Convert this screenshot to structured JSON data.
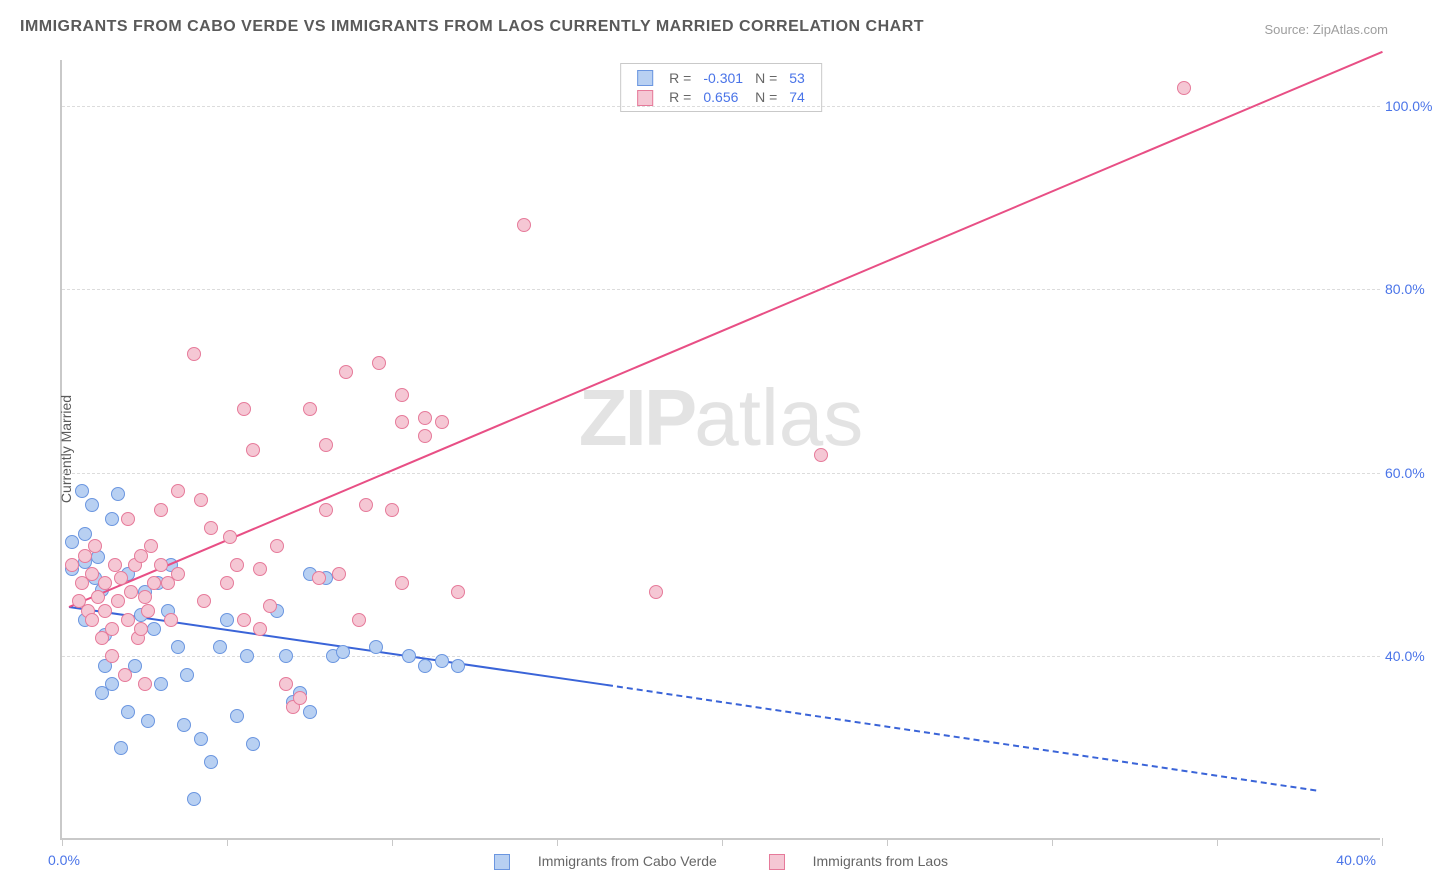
{
  "title": "IMMIGRANTS FROM CABO VERDE VS IMMIGRANTS FROM LAOS CURRENTLY MARRIED CORRELATION CHART",
  "source": "Source: ZipAtlas.com",
  "watermark_a": "ZIP",
  "watermark_b": "atlas",
  "chart": {
    "type": "scatter",
    "yaxis_title": "Currently Married",
    "xlim": [
      0,
      40
    ],
    "ylim": [
      20,
      105
    ],
    "xticks": [
      0,
      5,
      10,
      15,
      20,
      25,
      30,
      35,
      40
    ],
    "yticks": [
      40,
      60,
      80,
      100
    ],
    "ytick_labels": [
      "40.0%",
      "60.0%",
      "80.0%",
      "100.0%"
    ],
    "xlabel_min": "0.0%",
    "xlabel_max": "40.0%",
    "background_color": "#ffffff",
    "grid_color": "#dcdcdc",
    "axis_color": "#c9c9c9",
    "label_color": "#4a74e8",
    "title_color": "#5a5a5a",
    "title_fontsize": 16,
    "label_fontsize": 14,
    "marker_radius": 7,
    "marker_border_width": 1.2
  },
  "series": [
    {
      "key": "cabo_verde",
      "name": "Immigrants from Cabo Verde",
      "fill": "#b8d0f2",
      "stroke": "#6b96e0",
      "line_color": "#3a64d8",
      "R": "-0.301",
      "N": "53",
      "trend": {
        "x1": 0.2,
        "y1": 45.5,
        "x2": 16.5,
        "y2": 37.0,
        "dash_from_x": 16.5,
        "x3": 38.0,
        "y3": 25.5
      },
      "points": [
        [
          0.3,
          49.5
        ],
        [
          0.3,
          52.5
        ],
        [
          0.6,
          58.0
        ],
        [
          0.7,
          50.3
        ],
        [
          0.7,
          53.3
        ],
        [
          0.7,
          44.0
        ],
        [
          0.9,
          56.5
        ],
        [
          1.0,
          48.6
        ],
        [
          1.1,
          50.8
        ],
        [
          1.2,
          47.2
        ],
        [
          1.2,
          36.0
        ],
        [
          1.3,
          39.0
        ],
        [
          1.3,
          42.3
        ],
        [
          1.5,
          37.0
        ],
        [
          1.5,
          55.0
        ],
        [
          1.7,
          57.7
        ],
        [
          1.8,
          30.0
        ],
        [
          2.0,
          49.0
        ],
        [
          2.0,
          34.0
        ],
        [
          2.2,
          39.0
        ],
        [
          2.4,
          44.5
        ],
        [
          2.5,
          47.0
        ],
        [
          2.6,
          33.0
        ],
        [
          2.8,
          43.0
        ],
        [
          2.9,
          48.0
        ],
        [
          3.0,
          37.0
        ],
        [
          3.2,
          45.0
        ],
        [
          3.3,
          50.0
        ],
        [
          3.5,
          41.0
        ],
        [
          3.7,
          32.5
        ],
        [
          3.8,
          38.0
        ],
        [
          4.0,
          24.5
        ],
        [
          4.2,
          31.0
        ],
        [
          4.5,
          28.5
        ],
        [
          4.8,
          41.0
        ],
        [
          5.0,
          44.0
        ],
        [
          5.3,
          33.5
        ],
        [
          5.6,
          40.0
        ],
        [
          5.8,
          30.5
        ],
        [
          6.5,
          45.0
        ],
        [
          6.8,
          40.0
        ],
        [
          7.0,
          35.0
        ],
        [
          7.2,
          36.0
        ],
        [
          7.5,
          34.0
        ],
        [
          7.5,
          49.0
        ],
        [
          8.0,
          48.5
        ],
        [
          8.2,
          40.0
        ],
        [
          8.5,
          40.5
        ],
        [
          9.5,
          41.0
        ],
        [
          10.5,
          40.0
        ],
        [
          11.0,
          39.0
        ],
        [
          11.5,
          39.5
        ],
        [
          12.0,
          39.0
        ]
      ]
    },
    {
      "key": "laos",
      "name": "Immigrants from Laos",
      "fill": "#f5c7d4",
      "stroke": "#e67a9a",
      "line_color": "#e84f85",
      "R": "0.656",
      "N": "74",
      "trend": {
        "x1": 0.2,
        "y1": 45.5,
        "x2": 40.0,
        "y2": 106.0
      },
      "points": [
        [
          0.3,
          50.0
        ],
        [
          0.5,
          46.0
        ],
        [
          0.6,
          48.0
        ],
        [
          0.7,
          51.0
        ],
        [
          0.8,
          45.0
        ],
        [
          0.9,
          44.0
        ],
        [
          0.9,
          49.0
        ],
        [
          1.0,
          52.0
        ],
        [
          1.1,
          46.5
        ],
        [
          1.2,
          42.0
        ],
        [
          1.3,
          45.0
        ],
        [
          1.3,
          48.0
        ],
        [
          1.5,
          40.0
        ],
        [
          1.5,
          43.0
        ],
        [
          1.6,
          50.0
        ],
        [
          1.7,
          46.0
        ],
        [
          1.8,
          48.5
        ],
        [
          1.9,
          38.0
        ],
        [
          2.0,
          44.0
        ],
        [
          2.0,
          55.0
        ],
        [
          2.1,
          47.0
        ],
        [
          2.2,
          50.0
        ],
        [
          2.3,
          42.0
        ],
        [
          2.4,
          51.0
        ],
        [
          2.4,
          43.0
        ],
        [
          2.5,
          46.5
        ],
        [
          2.5,
          37.0
        ],
        [
          2.6,
          45.0
        ],
        [
          2.7,
          52.0
        ],
        [
          2.8,
          48.0
        ],
        [
          3.0,
          50.0
        ],
        [
          3.0,
          56.0
        ],
        [
          3.2,
          48.0
        ],
        [
          3.3,
          44.0
        ],
        [
          3.5,
          58.0
        ],
        [
          3.5,
          49.0
        ],
        [
          4.0,
          73.0
        ],
        [
          4.2,
          57.0
        ],
        [
          4.3,
          46.0
        ],
        [
          4.5,
          54.0
        ],
        [
          5.0,
          48.0
        ],
        [
          5.1,
          53.0
        ],
        [
          5.3,
          50.0
        ],
        [
          5.5,
          67.0
        ],
        [
          5.5,
          44.0
        ],
        [
          5.8,
          62.5
        ],
        [
          6.0,
          43.0
        ],
        [
          6.0,
          49.5
        ],
        [
          6.3,
          45.5
        ],
        [
          6.5,
          52.0
        ],
        [
          6.8,
          37.0
        ],
        [
          7.0,
          34.5
        ],
        [
          7.2,
          35.5
        ],
        [
          7.5,
          67.0
        ],
        [
          7.8,
          48.5
        ],
        [
          8.0,
          63.0
        ],
        [
          8.0,
          56.0
        ],
        [
          8.4,
          49.0
        ],
        [
          8.6,
          71.0
        ],
        [
          9.0,
          44.0
        ],
        [
          9.2,
          56.5
        ],
        [
          9.6,
          72.0
        ],
        [
          10.0,
          56.0
        ],
        [
          10.3,
          68.5
        ],
        [
          10.3,
          65.5
        ],
        [
          10.3,
          48.0
        ],
        [
          11.0,
          64.0
        ],
        [
          11.0,
          66.0
        ],
        [
          11.5,
          65.5
        ],
        [
          12.0,
          47.0
        ],
        [
          14.0,
          87.0
        ],
        [
          18.0,
          47.0
        ],
        [
          23.0,
          62.0
        ],
        [
          34.0,
          102.0
        ]
      ]
    }
  ],
  "legend_bottom": {
    "items": [
      {
        "label": "Immigrants from Cabo Verde",
        "fill": "#b8d0f2",
        "stroke": "#6b96e0"
      },
      {
        "label": "Immigrants from Laos",
        "fill": "#f5c7d4",
        "stroke": "#e67a9a"
      }
    ]
  }
}
